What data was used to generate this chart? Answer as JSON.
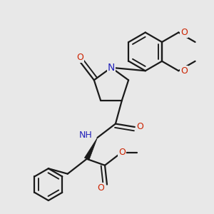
{
  "bg_color": "#e8e8e8",
  "bond_color": "#1a1a1a",
  "N_color": "#2222bb",
  "O_color": "#cc2200",
  "bond_width": 1.6,
  "figsize": [
    3.0,
    3.0
  ],
  "dpi": 100,
  "xlim": [
    0,
    10
  ],
  "ylim": [
    0,
    10
  ]
}
